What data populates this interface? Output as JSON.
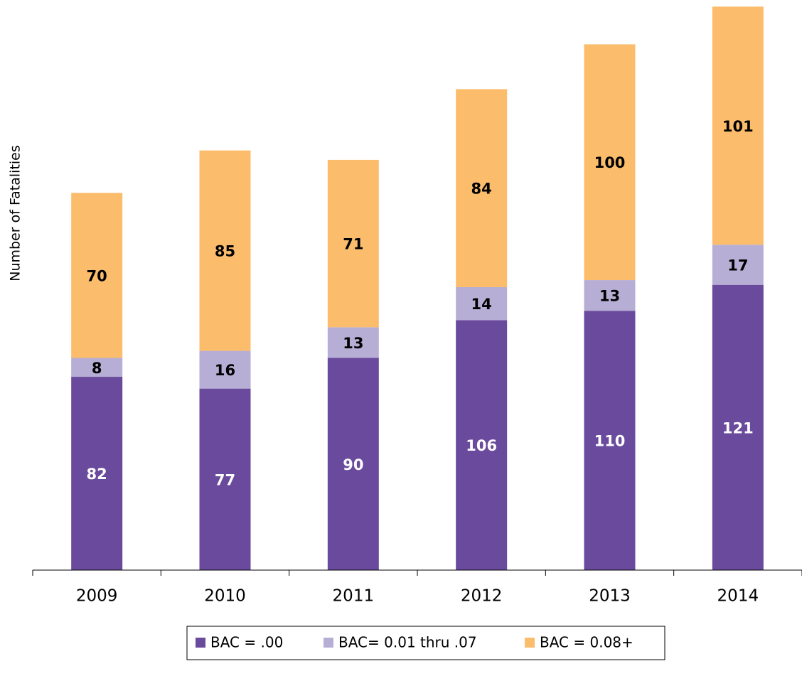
{
  "chart_data": {
    "type": "stacked_bar",
    "y_axis_label": "Number of Fatalities",
    "categories": [
      "2009",
      "2010",
      "2011",
      "2012",
      "2013",
      "2014"
    ],
    "series": [
      {
        "name": "BAC = .00",
        "color": "#6a4a9c",
        "values": [
          82,
          77,
          90,
          106,
          110,
          121
        ]
      },
      {
        "name": "BAC= 0.01 thru .07",
        "color": "#b7aed6",
        "values": [
          8,
          16,
          13,
          14,
          13,
          17
        ]
      },
      {
        "name": "BAC = 0.08+",
        "color": "#fbbd6c",
        "values": [
          70,
          85,
          71,
          84,
          100,
          101
        ]
      }
    ],
    "ylim": [
      0,
      240
    ],
    "legend": "bottom"
  }
}
